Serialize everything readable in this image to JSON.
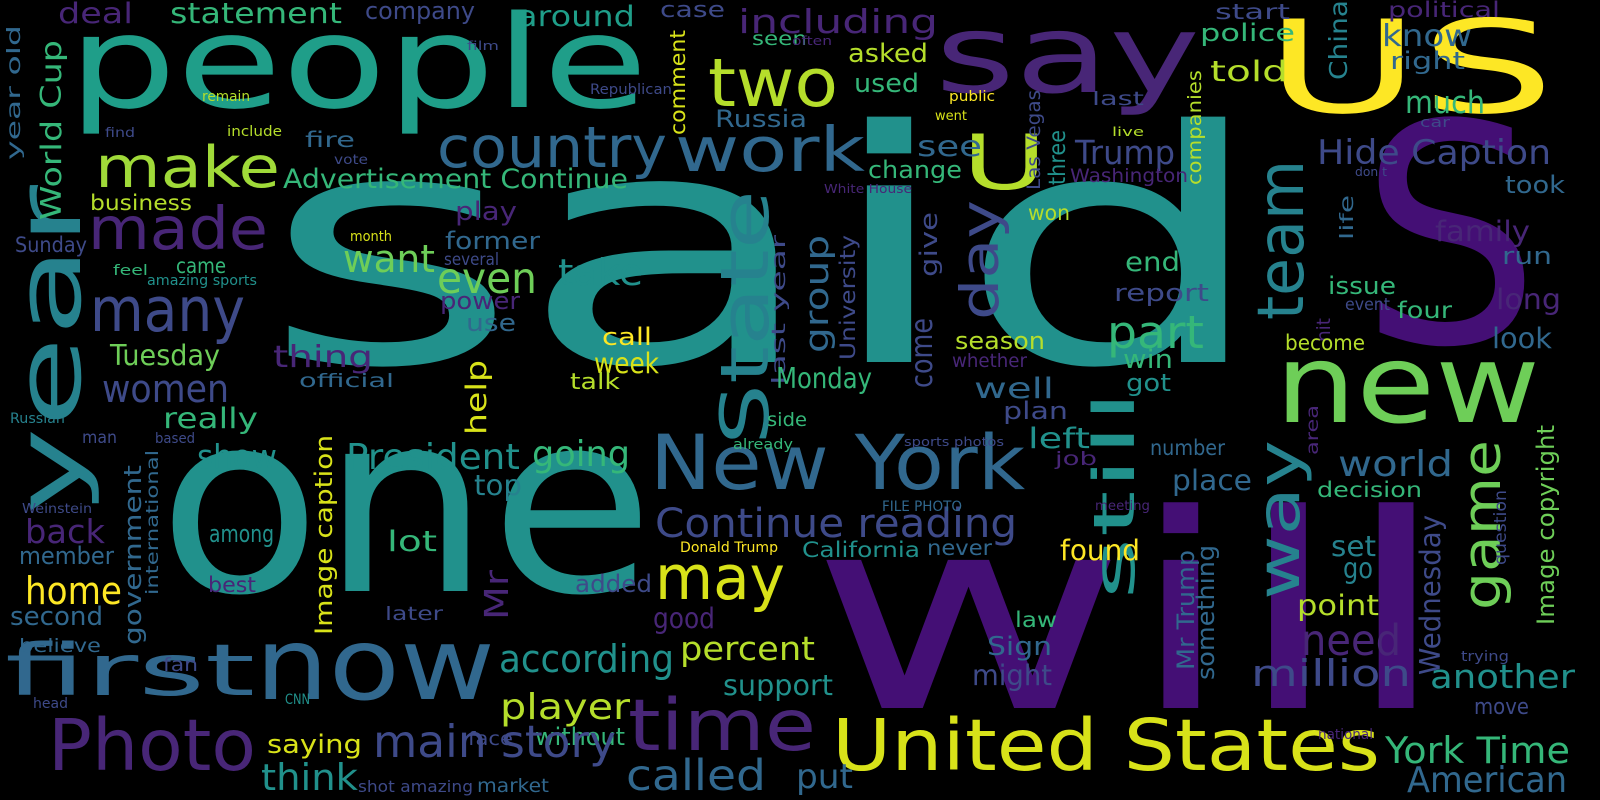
{
  "background": "#000000",
  "palette": {
    "dark_purple": "#482677",
    "indigo": "#3e4a89",
    "blue": "#31688e",
    "teal": "#26828e",
    "green_teal": "#1f9e89",
    "green": "#35b779",
    "lime": "#6ece58",
    "yellow_green": "#b5de2b",
    "yellow": "#fde725"
  },
  "words": [
    {
      "text": "said",
      "color": "#21918c"
    },
    {
      "text": "one",
      "color": "#21918c"
    },
    {
      "text": "will",
      "color": "#440f75"
    },
    {
      "text": "people",
      "color": "#1f9e89"
    },
    {
      "text": "say",
      "color": "#482677"
    },
    {
      "text": "S",
      "color": "#440f75"
    },
    {
      "text": "US",
      "color": "#fde725"
    },
    {
      "text": "U",
      "color": "#b5de2b"
    },
    {
      "text": "year",
      "color": "#26828e"
    },
    {
      "text": "new",
      "color": "#6ece58"
    },
    {
      "text": "now",
      "color": "#31688e"
    },
    {
      "text": "time",
      "color": "#482677"
    },
    {
      "text": "first",
      "color": "#31688e"
    },
    {
      "text": "Photo",
      "color": "#482677"
    },
    {
      "text": "New York",
      "color": "#31688e"
    },
    {
      "text": "United States",
      "color": "#d8e219"
    },
    {
      "text": "make",
      "color": "#a0da39"
    },
    {
      "text": "made",
      "color": "#482677"
    },
    {
      "text": "many",
      "color": "#3e4a89"
    },
    {
      "text": "two",
      "color": "#b5de2b"
    },
    {
      "text": "work",
      "color": "#31688e"
    },
    {
      "text": "country",
      "color": "#31688e"
    },
    {
      "text": "State",
      "color": "#26828e"
    },
    {
      "text": "day",
      "color": "#3e4a89"
    },
    {
      "text": "team",
      "color": "#26828e"
    },
    {
      "text": "still",
      "color": "#21918c"
    },
    {
      "text": "way",
      "color": "#26828e"
    },
    {
      "text": "game",
      "color": "#6ece58"
    },
    {
      "text": "may",
      "color": "#d8e219"
    },
    {
      "text": "Continue reading",
      "color": "#3e4a89"
    },
    {
      "text": "women",
      "color": "#3e4a89"
    },
    {
      "text": "part",
      "color": "#35b779"
    },
    {
      "text": "Trump",
      "color": "#3e4a89"
    },
    {
      "text": "Hide Caption",
      "color": "#3e4a89"
    },
    {
      "text": "home",
      "color": "#fde725"
    },
    {
      "text": "back",
      "color": "#482677"
    },
    {
      "text": "World Cup",
      "color": "#35b779"
    },
    {
      "text": "year old",
      "color": "#31688e"
    },
    {
      "text": "Sunday",
      "color": "#3e4a89"
    },
    {
      "text": "deal",
      "color": "#482677"
    },
    {
      "text": "statement",
      "color": "#35b779"
    },
    {
      "text": "company",
      "color": "#3e4a89"
    },
    {
      "text": "around",
      "color": "#1f9e89"
    },
    {
      "text": "case",
      "color": "#3e4a89"
    },
    {
      "text": "including",
      "color": "#482677"
    },
    {
      "text": "start",
      "color": "#3e4a89"
    },
    {
      "text": "political",
      "color": "#482677"
    },
    {
      "text": "police",
      "color": "#35b779"
    },
    {
      "text": "know",
      "color": "#31688e"
    },
    {
      "text": "right",
      "color": "#31688e"
    },
    {
      "text": "asked",
      "color": "#b5de2b"
    },
    {
      "text": "used",
      "color": "#35b779"
    },
    {
      "text": "seen",
      "color": "#35b779"
    },
    {
      "text": "often",
      "color": "#482677"
    },
    {
      "text": "film",
      "color": "#3e4a89"
    },
    {
      "text": "remain",
      "color": "#b5de2b"
    },
    {
      "text": "Republican",
      "color": "#3e4a89"
    },
    {
      "text": "find",
      "color": "#3e4a89"
    },
    {
      "text": "include",
      "color": "#b5de2b"
    },
    {
      "text": "told",
      "color": "#b5de2b"
    },
    {
      "text": "much",
      "color": "#35b779"
    },
    {
      "text": "Russia",
      "color": "#31688e"
    },
    {
      "text": "fire",
      "color": "#31688e"
    },
    {
      "text": "vote",
      "color": "#3e4a89"
    },
    {
      "text": "comment",
      "color": "#d8e219"
    },
    {
      "text": "public",
      "color": "#fde725"
    },
    {
      "text": "went",
      "color": "#d8e219"
    },
    {
      "text": "last",
      "color": "#3e4a89"
    },
    {
      "text": "live",
      "color": "#b5de2b"
    },
    {
      "text": "car",
      "color": "#3e4a89"
    },
    {
      "text": "China",
      "color": "#26828e"
    },
    {
      "text": "companies",
      "color": "#b5de2b"
    },
    {
      "text": "Washington",
      "color": "#482677"
    },
    {
      "text": "Las Vegas",
      "color": "#3e4a89"
    },
    {
      "text": "three",
      "color": "#21918c"
    },
    {
      "text": "don t",
      "color": "#3e4a89"
    },
    {
      "text": "took",
      "color": "#31688e"
    },
    {
      "text": "see",
      "color": "#31688e"
    },
    {
      "text": "change",
      "color": "#35b779"
    },
    {
      "text": "Advertisement Continue",
      "color": "#35b779"
    },
    {
      "text": "business",
      "color": "#b5de2b"
    },
    {
      "text": "play",
      "color": "#482677"
    },
    {
      "text": "former",
      "color": "#31688e"
    },
    {
      "text": "White House",
      "color": "#482677"
    },
    {
      "text": "won",
      "color": "#b5de2b"
    },
    {
      "text": "family",
      "color": "#482677"
    },
    {
      "text": "run",
      "color": "#31688e"
    },
    {
      "text": "want",
      "color": "#6ece58"
    },
    {
      "text": "several",
      "color": "#3e4a89"
    },
    {
      "text": "even",
      "color": "#6ece58"
    },
    {
      "text": "take",
      "color": "#21918c"
    },
    {
      "text": "give",
      "color": "#3e4a89"
    },
    {
      "text": "University",
      "color": "#3e4a89"
    },
    {
      "text": "group",
      "color": "#31688e"
    },
    {
      "text": "end",
      "color": "#35b779"
    },
    {
      "text": "report",
      "color": "#3e4a89"
    },
    {
      "text": "life",
      "color": "#31688e"
    },
    {
      "text": "long",
      "color": "#482677"
    },
    {
      "text": "issue",
      "color": "#35b779"
    },
    {
      "text": "event",
      "color": "#3e4a89"
    },
    {
      "text": "hit",
      "color": "#482677"
    },
    {
      "text": "four",
      "color": "#35b779"
    },
    {
      "text": "month",
      "color": "#d8e219"
    },
    {
      "text": "came",
      "color": "#35b779"
    },
    {
      "text": "feel",
      "color": "#35b779"
    },
    {
      "text": "amazing sports",
      "color": "#21918c"
    },
    {
      "text": "power",
      "color": "#482677"
    },
    {
      "text": "use",
      "color": "#31688e"
    },
    {
      "text": "last year",
      "color": "#3e4a89"
    },
    {
      "text": "call",
      "color": "#fde725"
    },
    {
      "text": "come",
      "color": "#3e4a89"
    },
    {
      "text": "season",
      "color": "#b5de2b"
    },
    {
      "text": "whether",
      "color": "#482677"
    },
    {
      "text": "become",
      "color": "#b5de2b"
    },
    {
      "text": "look",
      "color": "#31688e"
    },
    {
      "text": "Tuesday",
      "color": "#6ece58"
    },
    {
      "text": "thing",
      "color": "#482677"
    },
    {
      "text": "official",
      "color": "#31688e"
    },
    {
      "text": "week",
      "color": "#d8e219"
    },
    {
      "text": "talk",
      "color": "#b5de2b"
    },
    {
      "text": "Monday",
      "color": "#35b779"
    },
    {
      "text": "win",
      "color": "#35b779"
    },
    {
      "text": "got",
      "color": "#21918c"
    },
    {
      "text": "help",
      "color": "#d8e219"
    },
    {
      "text": "really",
      "color": "#35b779"
    },
    {
      "text": "well",
      "color": "#31688e"
    },
    {
      "text": "plan",
      "color": "#3e4a89"
    },
    {
      "text": "Russian",
      "color": "#26828e"
    },
    {
      "text": "man",
      "color": "#3e4a89"
    },
    {
      "text": "based",
      "color": "#3e4a89"
    },
    {
      "text": "side",
      "color": "#35b779"
    },
    {
      "text": "already",
      "color": "#35b779"
    },
    {
      "text": "sports photos",
      "color": "#3e4a89"
    },
    {
      "text": "area",
      "color": "#482677"
    },
    {
      "text": "left",
      "color": "#21918c"
    },
    {
      "text": "show",
      "color": "#21918c"
    },
    {
      "text": "President",
      "color": "#21918c"
    },
    {
      "text": "going",
      "color": "#35b779"
    },
    {
      "text": "job",
      "color": "#482677"
    },
    {
      "text": "number",
      "color": "#31688e"
    },
    {
      "text": "place",
      "color": "#31688e"
    },
    {
      "text": "world",
      "color": "#31688e"
    },
    {
      "text": "decision",
      "color": "#35b779"
    },
    {
      "text": "question",
      "color": "#3e4a89"
    },
    {
      "text": "Image copyright",
      "color": "#6ece58"
    },
    {
      "text": "Weinstein",
      "color": "#3e4a89"
    },
    {
      "text": "international",
      "color": "#31688e"
    },
    {
      "text": "top",
      "color": "#26828e"
    },
    {
      "text": "FILE PHOTO",
      "color": "#31688e"
    },
    {
      "text": "meeting",
      "color": "#482677"
    },
    {
      "text": "member",
      "color": "#31688e"
    },
    {
      "text": "government",
      "color": "#31688e"
    },
    {
      "text": "among",
      "color": "#21918c"
    },
    {
      "text": "lot",
      "color": "#35b779"
    },
    {
      "text": "Image caption",
      "color": "#d8e219"
    },
    {
      "text": "California",
      "color": "#21918c"
    },
    {
      "text": "found",
      "color": "#fde725"
    },
    {
      "text": "never",
      "color": "#31688e"
    },
    {
      "text": "Donald Trump",
      "color": "#fde725"
    },
    {
      "text": "set",
      "color": "#26828e"
    },
    {
      "text": "go",
      "color": "#26828e"
    },
    {
      "text": "Wednesday",
      "color": "#3e4a89"
    },
    {
      "text": "second",
      "color": "#31688e"
    },
    {
      "text": "best",
      "color": "#482677"
    },
    {
      "text": "added",
      "color": "#3e4a89"
    },
    {
      "text": "Mr",
      "color": "#482677"
    },
    {
      "text": "Mr Trump",
      "color": "#31688e"
    },
    {
      "text": "something",
      "color": "#31688e"
    },
    {
      "text": "point",
      "color": "#b5de2b"
    },
    {
      "text": "believe",
      "color": "#31688e"
    },
    {
      "text": "later",
      "color": "#3e4a89"
    },
    {
      "text": "good",
      "color": "#482677"
    },
    {
      "text": "law",
      "color": "#35b779"
    },
    {
      "text": "need",
      "color": "#482677"
    },
    {
      "text": "Sign",
      "color": "#31688e"
    },
    {
      "text": "fan",
      "color": "#3e4a89"
    },
    {
      "text": "according",
      "color": "#21918c"
    },
    {
      "text": "percent",
      "color": "#b5de2b"
    },
    {
      "text": "might",
      "color": "#3e4a89"
    },
    {
      "text": "million",
      "color": "#3e4a89"
    },
    {
      "text": "trying",
      "color": "#3e4a89"
    },
    {
      "text": "another",
      "color": "#21918c"
    },
    {
      "text": "support",
      "color": "#21918c"
    },
    {
      "text": "head",
      "color": "#3e4a89"
    },
    {
      "text": "CNN",
      "color": "#21918c"
    },
    {
      "text": "player",
      "color": "#b5de2b"
    },
    {
      "text": "move",
      "color": "#3e4a89"
    },
    {
      "text": "saying",
      "color": "#d8e219"
    },
    {
      "text": "face",
      "color": "#3e4a89"
    },
    {
      "text": "without",
      "color": "#35b779"
    },
    {
      "text": "main story",
      "color": "#3e4a89"
    },
    {
      "text": "national",
      "color": "#482677"
    },
    {
      "text": "York Time",
      "color": "#35b779"
    },
    {
      "text": "think",
      "color": "#21918c"
    },
    {
      "text": "shot amazing",
      "color": "#3e4a89"
    },
    {
      "text": "market",
      "color": "#31688e"
    },
    {
      "text": "called",
      "color": "#31688e"
    },
    {
      "text": "put",
      "color": "#31688e"
    },
    {
      "text": "American",
      "color": "#31688e"
    }
  ]
}
